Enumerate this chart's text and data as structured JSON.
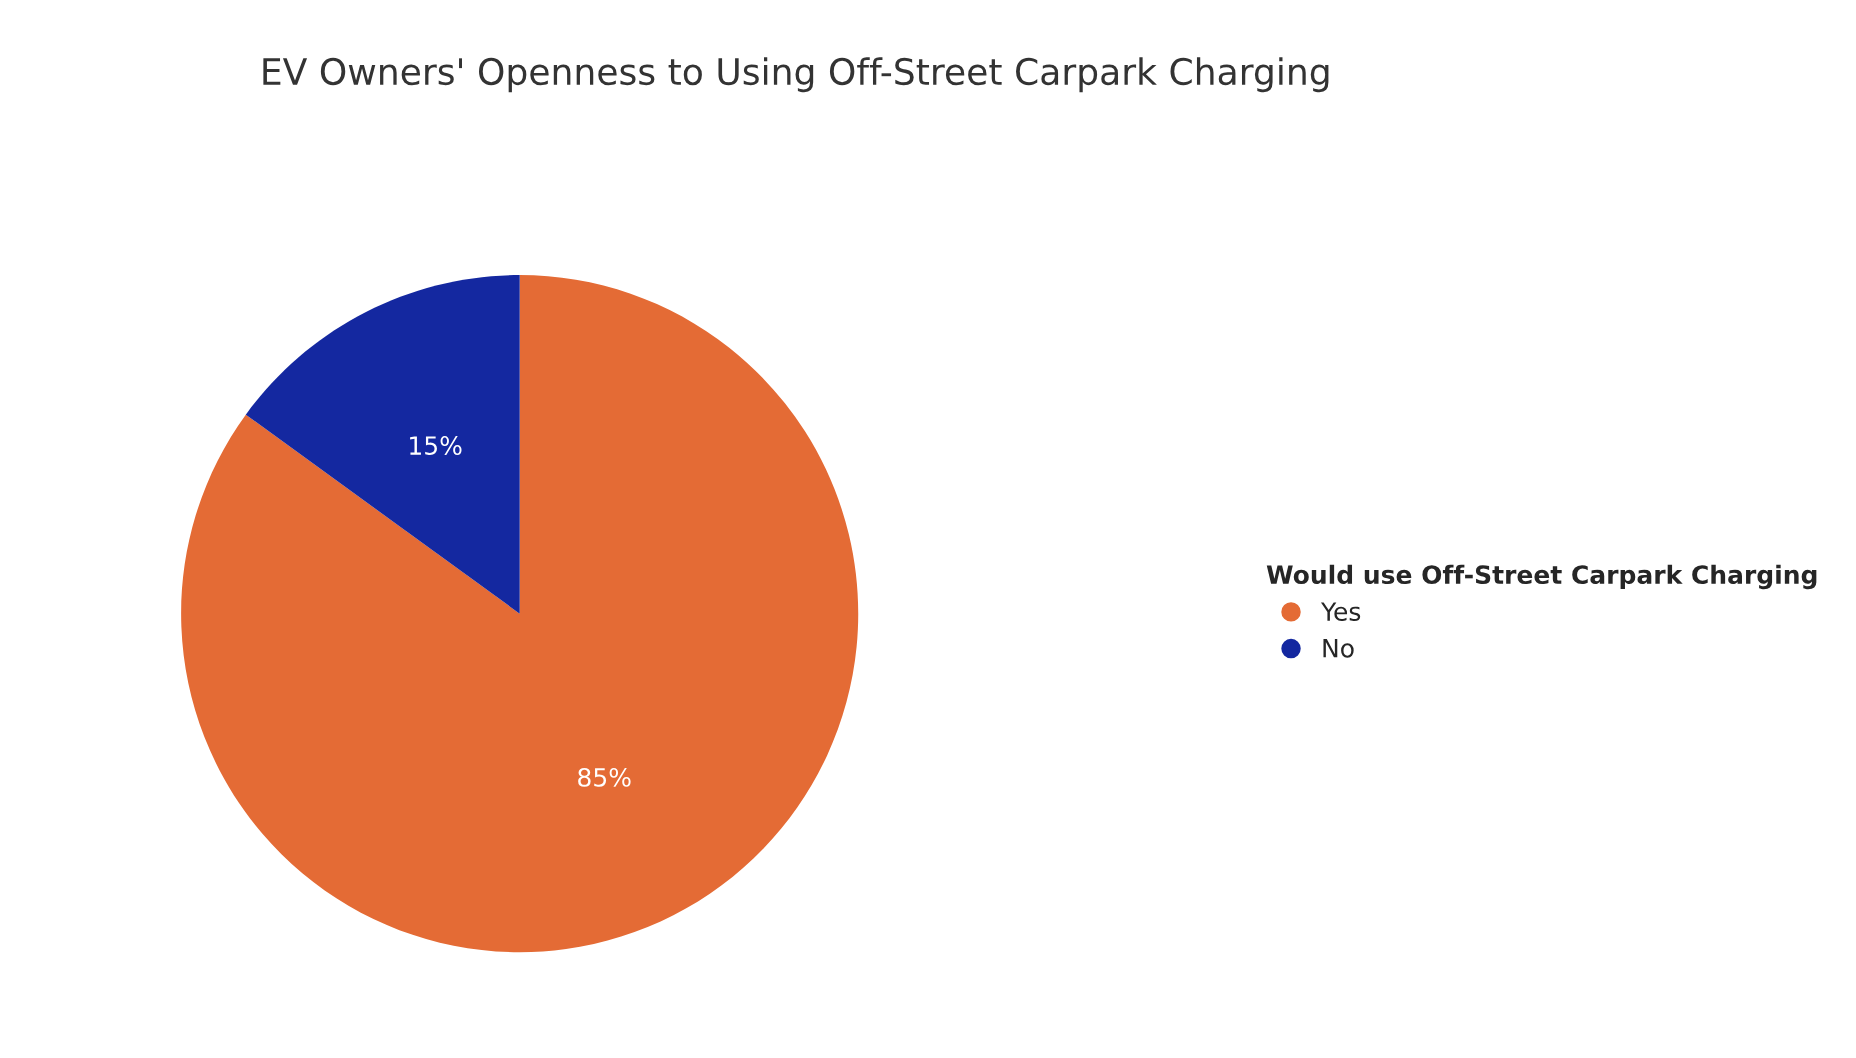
{
  "chart_data": {
    "type": "pie",
    "title": "EV Owners' Openness to Using Off-Street Carpark Charging",
    "categories": [
      "Yes",
      "No"
    ],
    "values": [
      85,
      15
    ],
    "value_labels": [
      "85%",
      "15%"
    ],
    "colors": [
      "#e46b35",
      "#1428a0"
    ],
    "legend_title": "Would use Off-Street Carpark Charging",
    "legend": "right"
  }
}
